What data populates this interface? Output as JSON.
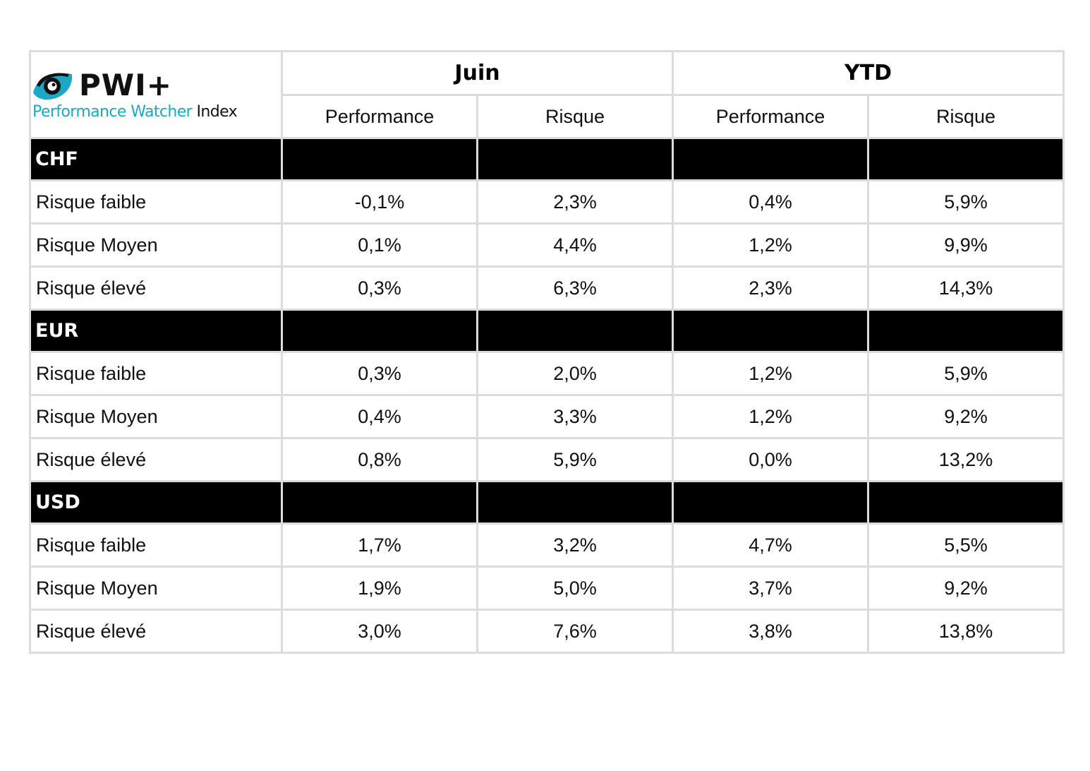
{
  "logo": {
    "brand": "PWI+",
    "subtitle_part1": "Performance Watcher",
    "subtitle_part2": " Index",
    "accent_color": "#1aa8c4",
    "icon": "eye-icon"
  },
  "header": {
    "period_1": "Juin",
    "period_2": "YTD",
    "columns": [
      "Performance",
      "Risque",
      "Performance",
      "Risque"
    ]
  },
  "sections": [
    {
      "currency": "CHF",
      "rows": [
        {
          "label": "Risque faible",
          "values": [
            "-0,1%",
            "2,3%",
            "0,4%",
            "5,9%"
          ]
        },
        {
          "label": "Risque Moyen",
          "values": [
            "0,1%",
            "4,4%",
            "1,2%",
            "9,9%"
          ]
        },
        {
          "label": "Risque élevé",
          "values": [
            "0,3%",
            "6,3%",
            "2,3%",
            "14,3%"
          ]
        }
      ]
    },
    {
      "currency": "EUR",
      "rows": [
        {
          "label": "Risque faible",
          "values": [
            "0,3%",
            "2,0%",
            "1,2%",
            "5,9%"
          ]
        },
        {
          "label": "Risque Moyen",
          "values": [
            "0,4%",
            "3,3%",
            "1,2%",
            "9,2%"
          ]
        },
        {
          "label": "Risque élevé",
          "values": [
            "0,8%",
            "5,9%",
            "0,0%",
            "13,2%"
          ]
        }
      ]
    },
    {
      "currency": "USD",
      "rows": [
        {
          "label": "Risque faible",
          "values": [
            "1,7%",
            "3,2%",
            "4,7%",
            "5,5%"
          ]
        },
        {
          "label": "Risque Moyen",
          "values": [
            "1,9%",
            "5,0%",
            "3,7%",
            "9,2%"
          ]
        },
        {
          "label": "Risque élevé",
          "values": [
            "3,0%",
            "7,6%",
            "3,8%",
            "13,8%"
          ]
        }
      ]
    }
  ]
}
